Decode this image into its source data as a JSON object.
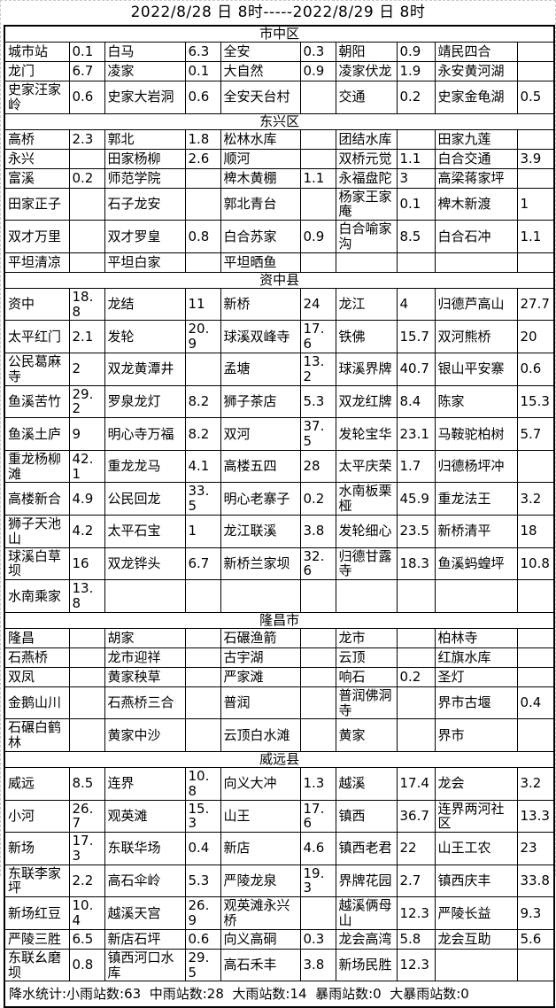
{
  "title": "2022/8/28 日 8时-----2022/8/29 日 8时",
  "sections": [
    {
      "name": "市中区",
      "rows": [
        [
          [
            "城市站",
            "0.1"
          ],
          [
            "白马",
            "6.3"
          ],
          [
            "全安",
            "0.3"
          ],
          [
            "朝阳",
            "0.9"
          ],
          [
            "靖民四合",
            ""
          ]
        ],
        [
          [
            "龙门",
            "6.7"
          ],
          [
            "凌家",
            "0.1"
          ],
          [
            "大自然",
            "0.9"
          ],
          [
            "凌家伏龙",
            "1.9"
          ],
          [
            "永安黄河湖",
            ""
          ]
        ],
        [
          [
            "史家汪家岭",
            "0.6"
          ],
          [
            "史家大岩洞",
            "0.6"
          ],
          [
            "全安天台村",
            ""
          ],
          [
            "交通",
            "0.2"
          ],
          [
            "史家金龟湖",
            "0.5"
          ]
        ]
      ]
    },
    {
      "name": "东兴区",
      "rows": [
        [
          [
            "高桥",
            "2.3"
          ],
          [
            "郭北",
            "1.8"
          ],
          [
            "松林水库",
            ""
          ],
          [
            "团结水库",
            ""
          ],
          [
            "田家九莲",
            ""
          ]
        ],
        [
          [
            "永兴",
            ""
          ],
          [
            "田家杨柳",
            "2.6"
          ],
          [
            "顺河",
            ""
          ],
          [
            "双桥元觉",
            "1.1"
          ],
          [
            "白合交通",
            "3.9"
          ]
        ],
        [
          [
            "富溪",
            "0.2"
          ],
          [
            "师范学院",
            ""
          ],
          [
            "椑木黄棚",
            "1.1"
          ],
          [
            "永福盘陀",
            "3"
          ],
          [
            "高梁蒋家坪",
            ""
          ]
        ],
        [
          [
            "田家正子",
            ""
          ],
          [
            "石子龙安",
            ""
          ],
          [
            "郭北青台",
            ""
          ],
          [
            "杨家王家庵",
            "0.1"
          ],
          [
            "椑木新渡",
            "1"
          ]
        ],
        [
          [
            "双才万里",
            ""
          ],
          [
            "双才罗皇",
            "0.8"
          ],
          [
            "白合苏家",
            "0.9"
          ],
          [
            "白合喻家沟",
            "8.5"
          ],
          [
            "白合石冲",
            "1.1"
          ]
        ],
        [
          [
            "平坦清凉",
            ""
          ],
          [
            "平坦白家",
            ""
          ],
          [
            "平坦晒鱼",
            ""
          ],
          [
            "",
            ""
          ],
          [
            "",
            ""
          ]
        ]
      ]
    },
    {
      "name": "资中县",
      "rows": [
        [
          [
            "资中",
            "18.8"
          ],
          [
            "龙结",
            "11"
          ],
          [
            "新桥",
            "24"
          ],
          [
            "龙江",
            "4"
          ],
          [
            "归德芦高山",
            "27.7"
          ]
        ],
        [
          [
            "太平红门",
            "2.1"
          ],
          [
            "发轮",
            "20.9"
          ],
          [
            "球溪双峰寺",
            "17.6"
          ],
          [
            "铁佛",
            "15.7"
          ],
          [
            "双河熊桥",
            "20"
          ]
        ],
        [
          [
            "公民葛麻寺",
            "2"
          ],
          [
            "双龙黄潭井",
            ""
          ],
          [
            "孟塘",
            "13.2"
          ],
          [
            "球溪界牌",
            "40.7"
          ],
          [
            "银山平安寨",
            "0.6"
          ]
        ],
        [
          [
            "鱼溪苦竹",
            "29.2"
          ],
          [
            "罗泉龙灯",
            "8.2"
          ],
          [
            "狮子茶店",
            "5.3"
          ],
          [
            "双龙红牌",
            "8.4"
          ],
          [
            "陈家",
            "15.3"
          ]
        ],
        [
          [
            "鱼溪土庐",
            "9"
          ],
          [
            "明心寺万福",
            "8.2"
          ],
          [
            "双河",
            "37.5"
          ],
          [
            "发轮宝华",
            "23.1"
          ],
          [
            "马鞍驼柏树",
            "5.7"
          ]
        ],
        [
          [
            "重龙杨柳滩",
            "42.1"
          ],
          [
            "重龙龙马",
            "4.1"
          ],
          [
            "高楼五四",
            "28"
          ],
          [
            "太平庆荣",
            "1.7"
          ],
          [
            "归德杨坪冲",
            ""
          ]
        ],
        [
          [
            "高楼新合",
            "4.9"
          ],
          [
            "公民回龙",
            "33.5"
          ],
          [
            "明心老寨子",
            "0.2"
          ],
          [
            "水南板栗桠",
            "45.9"
          ],
          [
            "重龙法王",
            "3.2"
          ]
        ],
        [
          [
            "狮子天池山",
            "4.2"
          ],
          [
            "太平石宝",
            "1"
          ],
          [
            "龙江联溪",
            "3.8"
          ],
          [
            "发轮细心",
            "23.5"
          ],
          [
            "新桥清平",
            "18"
          ]
        ],
        [
          [
            "球溪白草坝",
            "16"
          ],
          [
            "双龙铧头",
            "6.7"
          ],
          [
            "新桥兰家坝",
            "32.6"
          ],
          [
            "归德甘露寺",
            "18.3"
          ],
          [
            "鱼溪蚂蝗坪",
            "10.8"
          ]
        ],
        [
          [
            "水南乘家",
            "13.8"
          ],
          [
            "",
            ""
          ],
          [
            "",
            ""
          ],
          [
            "",
            ""
          ],
          [
            "",
            ""
          ]
        ]
      ]
    },
    {
      "name": "隆昌市",
      "rows": [
        [
          [
            "隆昌",
            ""
          ],
          [
            "胡家",
            ""
          ],
          [
            "石碾渔箭",
            ""
          ],
          [
            "龙市",
            ""
          ],
          [
            "柏林寺",
            ""
          ]
        ],
        [
          [
            "石燕桥",
            ""
          ],
          [
            "龙市迎祥",
            ""
          ],
          [
            "古宇湖",
            ""
          ],
          [
            "云顶",
            ""
          ],
          [
            "红旗水库",
            ""
          ]
        ],
        [
          [
            "双凤",
            ""
          ],
          [
            "黄家秧草",
            ""
          ],
          [
            "严家滩",
            ""
          ],
          [
            "响石",
            "0.2"
          ],
          [
            "圣灯",
            ""
          ]
        ],
        [
          [
            "金鹅山川",
            ""
          ],
          [
            "石燕桥三合",
            ""
          ],
          [
            "普润",
            ""
          ],
          [
            "普润佛洞寺",
            ""
          ],
          [
            "界市古堰",
            "0.4"
          ]
        ],
        [
          [
            "石碾白鹤林",
            ""
          ],
          [
            "黄家中沙",
            ""
          ],
          [
            "云顶白水滩",
            ""
          ],
          [
            "黄家",
            ""
          ],
          [
            "界市",
            ""
          ]
        ]
      ]
    },
    {
      "name": "威远县",
      "rows": [
        [
          [
            "威远",
            "8.5"
          ],
          [
            "连界",
            "10.8"
          ],
          [
            "向义大冲",
            "1.3"
          ],
          [
            "越溪",
            "17.4"
          ],
          [
            "龙会",
            "3.2"
          ]
        ],
        [
          [
            "小河",
            "26.7"
          ],
          [
            "观英滩",
            "15.3"
          ],
          [
            "山王",
            "17.6"
          ],
          [
            "镇西",
            "36.7"
          ],
          [
            "连界两河社区",
            "13.3"
          ]
        ],
        [
          [
            "新场",
            "17.3"
          ],
          [
            "东联华场",
            "0.4"
          ],
          [
            "新店",
            "4.6"
          ],
          [
            "镇西老君",
            "22"
          ],
          [
            "山王工农",
            "23"
          ]
        ],
        [
          [
            "东联李家坪",
            "2.2"
          ],
          [
            "高石伞岭",
            "5.3"
          ],
          [
            "严陵龙泉",
            "19.3"
          ],
          [
            "界牌花园",
            "2.7"
          ],
          [
            "镇西庆丰",
            "33.8"
          ]
        ],
        [
          [
            "新场红豆",
            "10.4"
          ],
          [
            "越溪天宫",
            "26.9"
          ],
          [
            "观英滩永兴桥",
            ""
          ],
          [
            "越溪俩母山",
            "12.3"
          ],
          [
            "严陵长益",
            "9.3"
          ]
        ],
        [
          [
            "严陵三胜",
            "6.5"
          ],
          [
            "新店石坪",
            "0.6"
          ],
          [
            "向义高硐",
            "0.3"
          ],
          [
            "龙会高湾",
            "5.8"
          ],
          [
            "龙会互助",
            "5.6"
          ]
        ],
        [
          [
            "东联幺磨坝",
            "0.8"
          ],
          [
            "镇西河口水库",
            "29.5"
          ],
          [
            "高石禾丰",
            "3.8"
          ],
          [
            "新场民胜",
            "12.3"
          ],
          [
            "",
            ""
          ]
        ]
      ]
    }
  ],
  "summary": {
    "prefix": "降水统计:",
    "stats": [
      {
        "label": "小雨站数",
        "value": "63"
      },
      {
        "label": "中雨站数",
        "value": "28"
      },
      {
        "label": "大雨站数",
        "value": "14"
      },
      {
        "label": "暴雨站数",
        "value": "0"
      },
      {
        "label": "大暴雨站数",
        "value": "0"
      }
    ]
  }
}
